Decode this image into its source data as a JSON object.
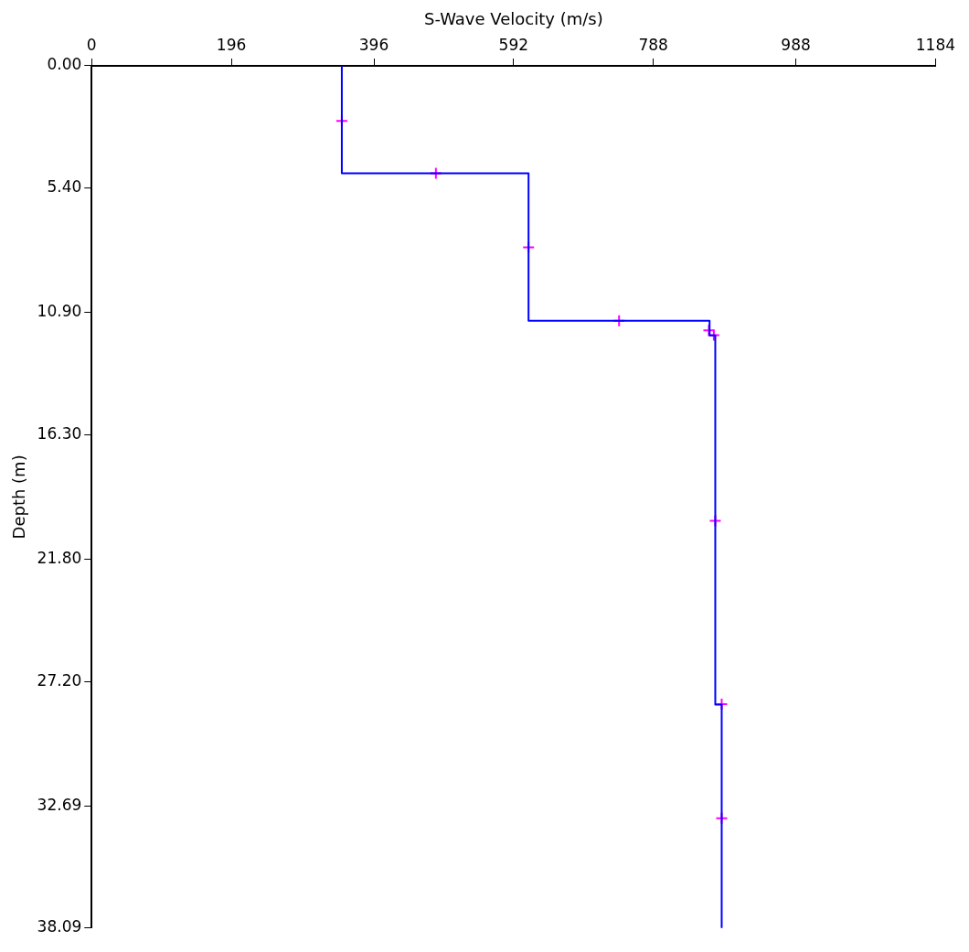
{
  "chart_data": {
    "type": "line",
    "xlabel": "S-Wave Velocity (m/s)",
    "ylabel": "Depth (m)",
    "xlim": [
      0,
      1184
    ],
    "xticks": [
      0,
      196,
      396,
      592,
      788,
      988,
      1184
    ],
    "ylim": [
      38.09,
      0
    ],
    "yticks": [
      {
        "value": 0,
        "label": "0.00"
      },
      {
        "value": 5.4,
        "label": "5.40"
      },
      {
        "value": 10.9,
        "label": "10.90"
      },
      {
        "value": 16.3,
        "label": "16.30"
      },
      {
        "value": 21.8,
        "label": "21.80"
      },
      {
        "value": 27.2,
        "label": "27.20"
      },
      {
        "value": 32.69,
        "label": "32.69"
      },
      {
        "value": 38.09,
        "label": "38.09"
      }
    ],
    "grid": false,
    "legend": false,
    "series": [
      {
        "color": "#0000ff",
        "marker": "none",
        "line_style": "solid",
        "x": [
          351,
          351,
          613,
          613,
          867,
          867,
          875,
          875,
          884,
          884
        ],
        "values": [
          0,
          4.75,
          4.75,
          11.26,
          11.26,
          11.91,
          11.91,
          28.22,
          28.22,
          38.09
        ]
      },
      {
        "type": "scatter",
        "color": "#ff00ff",
        "marker": "cross",
        "x": [
          351,
          483,
          613,
          740,
          866,
          873,
          875,
          884,
          884
        ],
        "values": [
          2.43,
          4.75,
          8.02,
          11.26,
          11.69,
          11.9,
          20.1,
          28.2,
          33.24
        ]
      }
    ]
  }
}
